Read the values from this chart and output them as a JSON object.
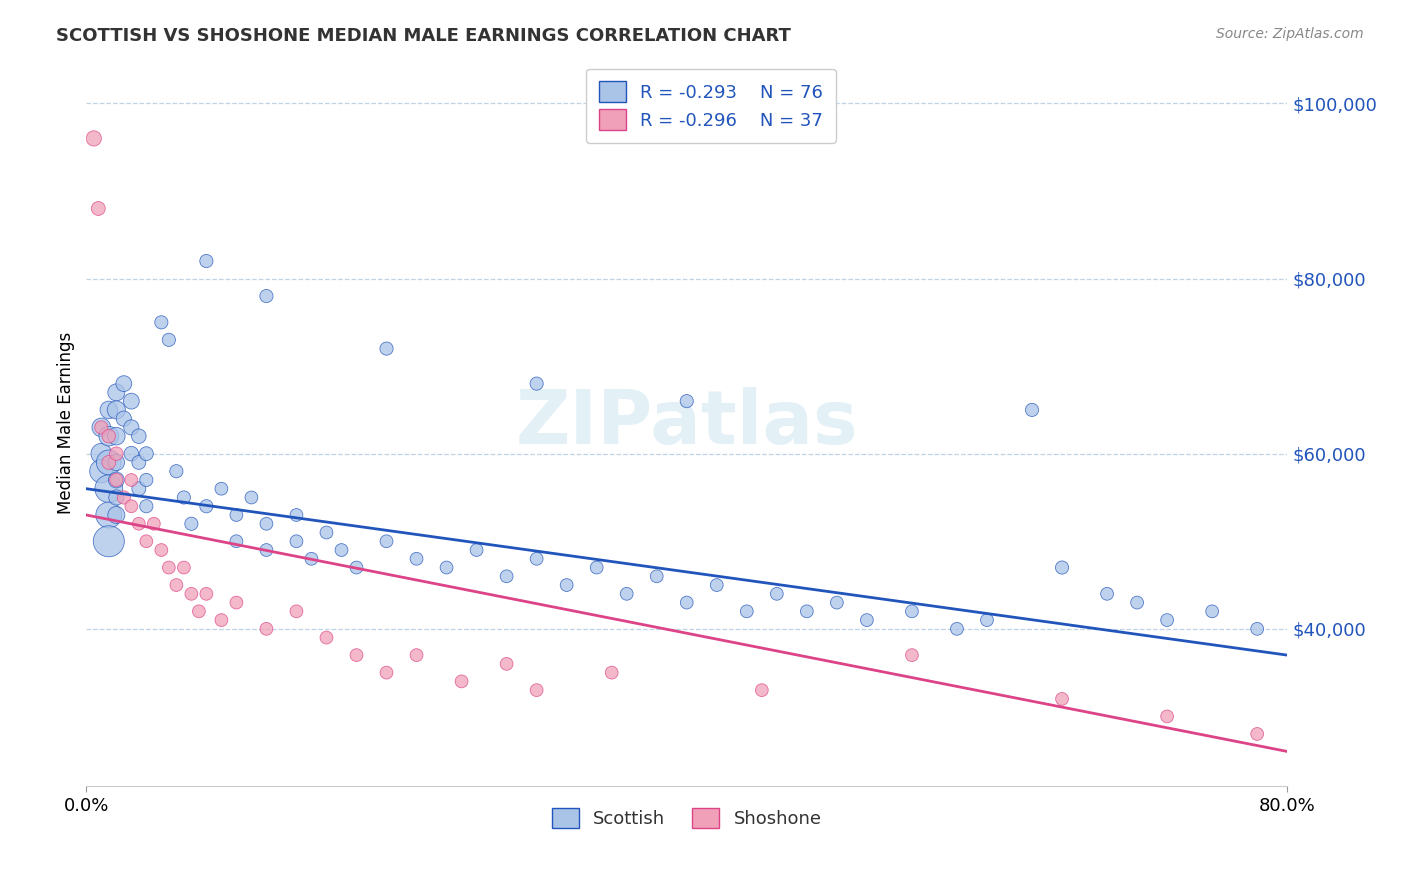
{
  "title": "SCOTTISH VS SHOSHONE MEDIAN MALE EARNINGS CORRELATION CHART",
  "source_text": "Source: ZipAtlas.com",
  "ylabel": "Median Male Earnings",
  "xlim": [
    0.0,
    0.8
  ],
  "ylim": [
    22000,
    105000
  ],
  "yticks": [
    40000,
    60000,
    80000,
    100000
  ],
  "ytick_labels": [
    "$40,000",
    "$60,000",
    "$80,000",
    "$100,000"
  ],
  "xticks": [
    0.0,
    0.8
  ],
  "xtick_labels": [
    "0.0%",
    "80.0%"
  ],
  "scottish_color": "#aac4e8",
  "shoshone_color": "#f0a0b8",
  "trend_scottish_color": "#2255bb",
  "trend_shoshone_color": "#dd4488",
  "watermark": "ZIPatlas",
  "trend_scottish": [
    0.0,
    56000,
    0.8,
    37000
  ],
  "trend_shoshone": [
    0.0,
    53000,
    0.8,
    26000
  ],
  "scottish_points": [
    [
      0.01,
      63000,
      180
    ],
    [
      0.01,
      60000,
      220
    ],
    [
      0.01,
      58000,
      280
    ],
    [
      0.015,
      65000,
      160
    ],
    [
      0.015,
      62000,
      200
    ],
    [
      0.015,
      59000,
      320
    ],
    [
      0.015,
      56000,
      400
    ],
    [
      0.015,
      53000,
      350
    ],
    [
      0.015,
      50000,
      500
    ],
    [
      0.02,
      67000,
      150
    ],
    [
      0.02,
      65000,
      170
    ],
    [
      0.02,
      62000,
      160
    ],
    [
      0.02,
      59000,
      140
    ],
    [
      0.02,
      57000,
      130
    ],
    [
      0.02,
      55000,
      120
    ],
    [
      0.02,
      53000,
      150
    ],
    [
      0.025,
      68000,
      130
    ],
    [
      0.025,
      64000,
      120
    ],
    [
      0.03,
      66000,
      130
    ],
    [
      0.03,
      63000,
      120
    ],
    [
      0.03,
      60000,
      110
    ],
    [
      0.035,
      62000,
      110
    ],
    [
      0.035,
      59000,
      100
    ],
    [
      0.035,
      56000,
      100
    ],
    [
      0.04,
      60000,
      100
    ],
    [
      0.04,
      57000,
      90
    ],
    [
      0.04,
      54000,
      90
    ],
    [
      0.05,
      75000,
      90
    ],
    [
      0.055,
      73000,
      90
    ],
    [
      0.06,
      58000,
      90
    ],
    [
      0.065,
      55000,
      90
    ],
    [
      0.07,
      52000,
      90
    ],
    [
      0.08,
      54000,
      90
    ],
    [
      0.09,
      56000,
      85
    ],
    [
      0.1,
      53000,
      85
    ],
    [
      0.1,
      50000,
      85
    ],
    [
      0.11,
      55000,
      85
    ],
    [
      0.12,
      52000,
      85
    ],
    [
      0.12,
      49000,
      85
    ],
    [
      0.14,
      53000,
      85
    ],
    [
      0.14,
      50000,
      85
    ],
    [
      0.15,
      48000,
      85
    ],
    [
      0.16,
      51000,
      85
    ],
    [
      0.17,
      49000,
      85
    ],
    [
      0.18,
      47000,
      85
    ],
    [
      0.2,
      50000,
      85
    ],
    [
      0.22,
      48000,
      85
    ],
    [
      0.24,
      47000,
      85
    ],
    [
      0.26,
      49000,
      85
    ],
    [
      0.28,
      46000,
      85
    ],
    [
      0.3,
      48000,
      85
    ],
    [
      0.32,
      45000,
      85
    ],
    [
      0.34,
      47000,
      85
    ],
    [
      0.36,
      44000,
      85
    ],
    [
      0.38,
      46000,
      85
    ],
    [
      0.4,
      43000,
      85
    ],
    [
      0.42,
      45000,
      85
    ],
    [
      0.44,
      42000,
      85
    ],
    [
      0.46,
      44000,
      85
    ],
    [
      0.48,
      42000,
      85
    ],
    [
      0.5,
      43000,
      85
    ],
    [
      0.52,
      41000,
      85
    ],
    [
      0.55,
      42000,
      85
    ],
    [
      0.58,
      40000,
      85
    ],
    [
      0.6,
      41000,
      85
    ],
    [
      0.63,
      65000,
      90
    ],
    [
      0.65,
      47000,
      90
    ],
    [
      0.68,
      44000,
      85
    ],
    [
      0.7,
      43000,
      85
    ],
    [
      0.72,
      41000,
      85
    ],
    [
      0.75,
      42000,
      85
    ],
    [
      0.78,
      40000,
      85
    ],
    [
      0.08,
      82000,
      90
    ],
    [
      0.12,
      78000,
      90
    ],
    [
      0.2,
      72000,
      90
    ],
    [
      0.3,
      68000,
      90
    ],
    [
      0.4,
      66000,
      90
    ]
  ],
  "shoshone_points": [
    [
      0.005,
      96000,
      120
    ],
    [
      0.008,
      88000,
      100
    ],
    [
      0.01,
      63000,
      90
    ],
    [
      0.015,
      62000,
      95
    ],
    [
      0.015,
      59000,
      100
    ],
    [
      0.02,
      60000,
      95
    ],
    [
      0.02,
      57000,
      90
    ],
    [
      0.025,
      55000,
      90
    ],
    [
      0.03,
      57000,
      85
    ],
    [
      0.03,
      54000,
      85
    ],
    [
      0.035,
      52000,
      85
    ],
    [
      0.04,
      50000,
      85
    ],
    [
      0.045,
      52000,
      85
    ],
    [
      0.05,
      49000,
      85
    ],
    [
      0.055,
      47000,
      85
    ],
    [
      0.06,
      45000,
      85
    ],
    [
      0.065,
      47000,
      85
    ],
    [
      0.07,
      44000,
      85
    ],
    [
      0.075,
      42000,
      85
    ],
    [
      0.08,
      44000,
      85
    ],
    [
      0.09,
      41000,
      85
    ],
    [
      0.1,
      43000,
      85
    ],
    [
      0.12,
      40000,
      85
    ],
    [
      0.14,
      42000,
      85
    ],
    [
      0.16,
      39000,
      85
    ],
    [
      0.18,
      37000,
      85
    ],
    [
      0.2,
      35000,
      85
    ],
    [
      0.22,
      37000,
      85
    ],
    [
      0.25,
      34000,
      85
    ],
    [
      0.28,
      36000,
      85
    ],
    [
      0.3,
      33000,
      85
    ],
    [
      0.35,
      35000,
      85
    ],
    [
      0.45,
      33000,
      85
    ],
    [
      0.55,
      37000,
      85
    ],
    [
      0.65,
      32000,
      85
    ],
    [
      0.72,
      30000,
      85
    ],
    [
      0.78,
      28000,
      85
    ]
  ]
}
